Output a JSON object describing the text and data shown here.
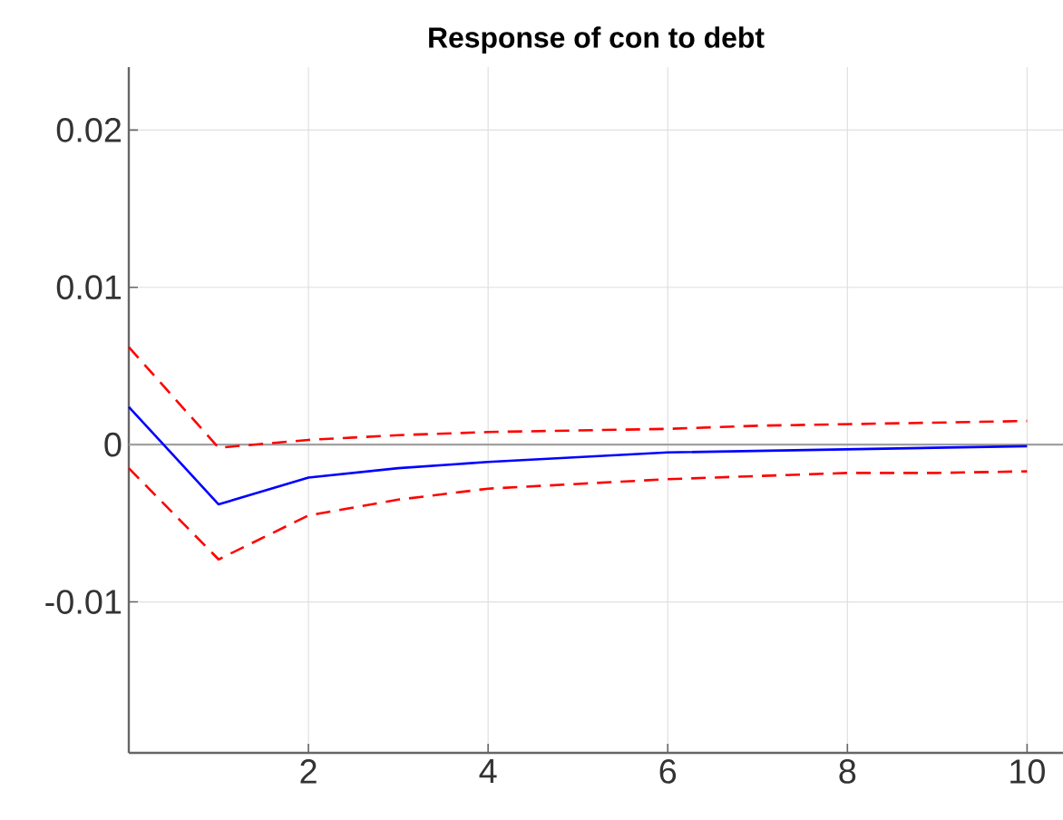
{
  "chart_data": {
    "type": "line",
    "title": "Response of con to debt",
    "x": [
      0,
      1,
      2,
      3,
      4,
      5,
      6,
      7,
      8,
      9,
      10
    ],
    "series": [
      {
        "color": "#0000ff",
        "line_style": "solid",
        "values": [
          0.0024,
          -0.0038,
          -0.0021,
          -0.0015,
          -0.0011,
          -0.0008,
          -0.0005,
          -0.0004,
          -0.0003,
          -0.0002,
          -0.0001
        ]
      },
      {
        "color": "#ff0000",
        "line_style": "dashed",
        "values": [
          0.0062,
          -0.0002,
          0.0003,
          0.0006,
          0.0008,
          0.0009,
          0.001,
          0.0012,
          0.0013,
          0.0014,
          0.0015
        ]
      },
      {
        "color": "#ff0000",
        "line_style": "dashed",
        "values": [
          -0.0015,
          -0.0073,
          -0.0045,
          -0.0035,
          -0.0028,
          -0.0025,
          -0.0022,
          -0.002,
          -0.0018,
          -0.0018,
          -0.0017
        ]
      }
    ],
    "xlim": [
      0,
      10.4
    ],
    "ylim": [
      -0.0196,
      0.024
    ],
    "xticks": [
      2,
      4,
      6,
      8,
      10
    ],
    "yticks": [
      -0.01,
      0,
      0.01,
      0.02
    ],
    "grid": true,
    "marker": "none",
    "ref_lines": [
      {
        "axis": "y",
        "value": 0,
        "color": "#a0a0a0"
      }
    ]
  }
}
